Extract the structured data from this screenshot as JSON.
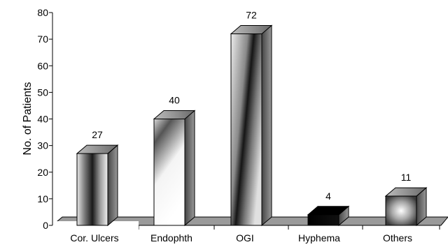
{
  "chart_data": {
    "type": "bar",
    "style": "3d",
    "categories": [
      "Cor. Ulcers",
      "Endophth",
      "OGI",
      "Hyphema",
      "Others"
    ],
    "values": [
      27,
      40,
      72,
      4,
      11
    ],
    "data_labels": [
      "27",
      "40",
      "72",
      "4",
      "11"
    ],
    "ylabel": "No. of Patients",
    "xlabel": "",
    "ylim": [
      0,
      80
    ],
    "yticks": [
      "0",
      "10",
      "20",
      "30",
      "40",
      "50",
      "60",
      "70",
      "80"
    ],
    "grid": false,
    "legend": "none"
  }
}
